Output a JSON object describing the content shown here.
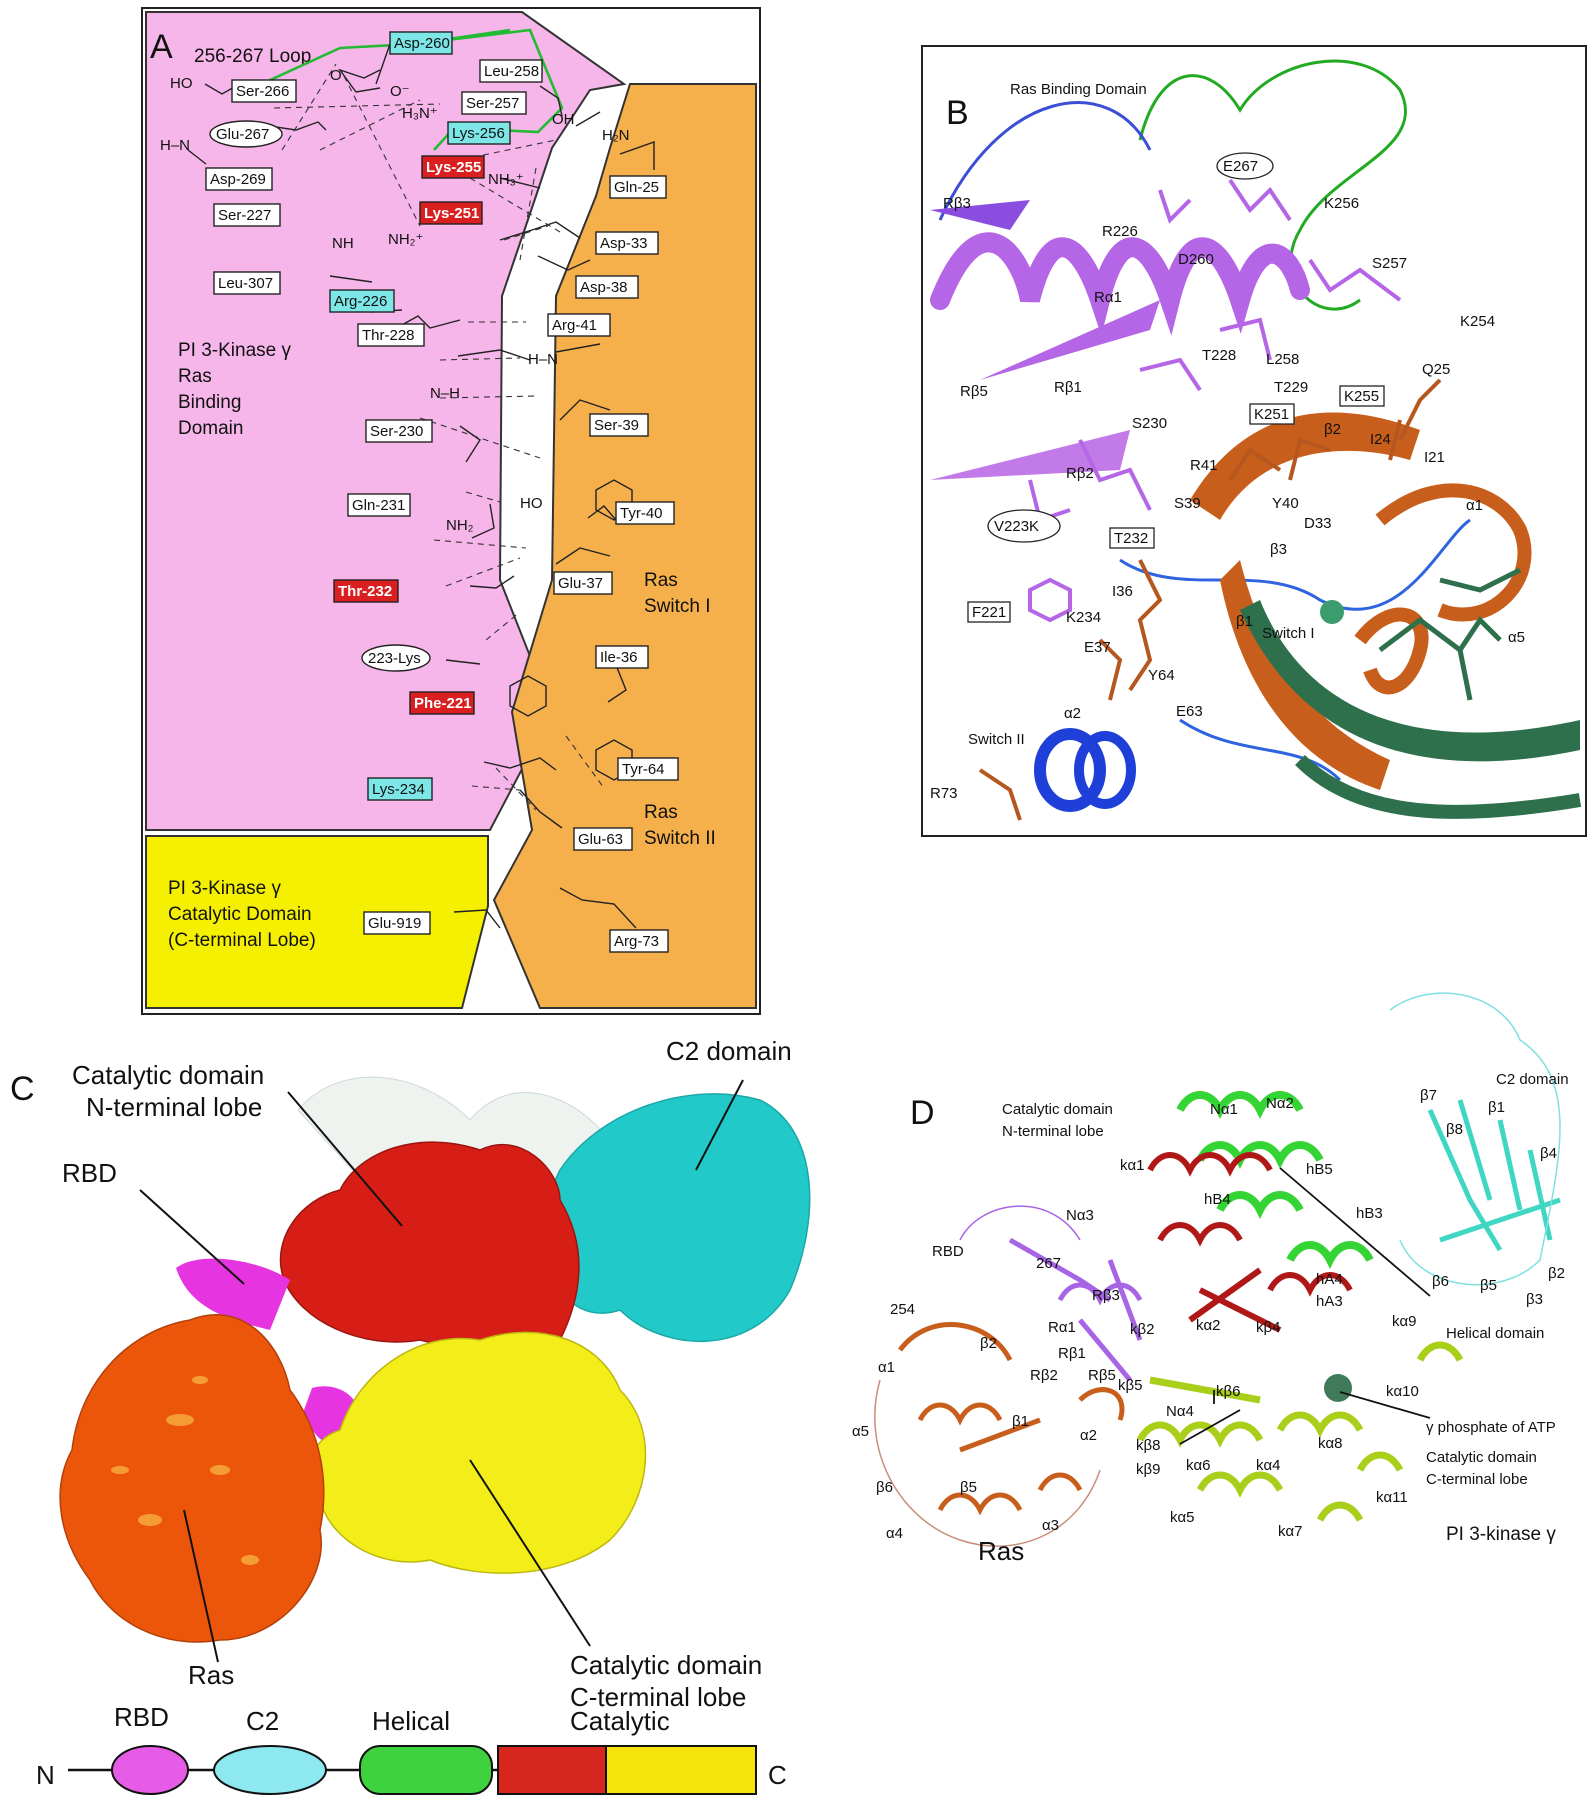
{
  "panelA": {
    "letter": "A",
    "loop_title": "256-267  Loop",
    "rbd_label": [
      "PI 3-Kinase γ",
      "Ras",
      "Binding",
      "Domain"
    ],
    "catalytic_label": [
      "PI 3-Kinase γ",
      "Catalytic Domain",
      "(C-terminal Lobe)"
    ],
    "switch1_label": [
      "Ras",
      "Switch I"
    ],
    "switch2_label": [
      "Ras",
      "Switch II"
    ],
    "residues_white": [
      "Ser-266",
      "Leu-258",
      "Ser-257",
      "Asp-269",
      "Ser-227",
      "Leu-307",
      "Thr-228",
      "Ser-230",
      "Gln-231",
      "Gln-25",
      "Asp-33",
      "Asp-38",
      "Arg-41",
      "Ser-39",
      "Tyr-40",
      "Glu-37",
      "Ile-36",
      "Tyr-64",
      "Glu-63",
      "Arg-73",
      "Glu-919"
    ],
    "residues_cyan": [
      "Asp-260",
      "Lys-256",
      "Arg-226",
      "Lys-234"
    ],
    "residues_red": [
      "Lys-255",
      "Lys-251",
      "Thr-232",
      "Phe-221"
    ],
    "residues_oval": [
      "Glu-267",
      "223-Lys"
    ],
    "atoms": [
      "HO",
      "H–N",
      "O",
      "O⁻",
      "H₃N⁺",
      "NH₃⁺",
      "OH",
      "H₂N",
      "NH",
      "NH₂⁺",
      "H–N",
      "N–H",
      "HO",
      "NH₂"
    ]
  },
  "panelB": {
    "letter": "B",
    "title": "Ras Binding Domain",
    "boxed": [
      "E267",
      "K251",
      "K255",
      "T232",
      "V223K",
      "F221"
    ],
    "labels": [
      "Rβ3",
      "R226",
      "D260",
      "K256",
      "S257",
      "K254",
      "Rα1",
      "T228",
      "L258",
      "T229",
      "Q25",
      "Rβ5",
      "Rβ1",
      "S230",
      "β2",
      "I24",
      "I21",
      "Rβ2",
      "R41",
      "S39",
      "Y40",
      "D33",
      "α1",
      "β3",
      "I36",
      "K234",
      "β1",
      "Switch I",
      "α5",
      "E37",
      "Y64",
      "E63",
      "α2",
      "Switch II",
      "R73"
    ]
  },
  "panelC": {
    "letter": "C",
    "labels": {
      "nlobe": [
        "Catalytic domain",
        "N-terminal lobe"
      ],
      "c2": "C2 domain",
      "rbd": "RBD",
      "ras": "Ras",
      "clobe": [
        "Catalytic domain",
        "C-terminal lobe"
      ]
    }
  },
  "panelD": {
    "letter": "D",
    "labels": {
      "nlobe": [
        "Catalytic domain",
        "N-terminal lobe"
      ],
      "c2": "C2 domain",
      "rbd": "RBD",
      "helical": "Helical domain",
      "atp": "γ phosphate of ATP",
      "clobe": [
        "Catalytic domain",
        "C-terminal lobe"
      ],
      "ras": "Ras",
      "pi3k": "PI 3-kinase γ"
    },
    "sse": [
      "Nα1",
      "Nα2",
      "β7",
      "β1",
      "β8",
      "β4",
      "kα1",
      "hB5",
      "hB4",
      "hB3",
      "Nα3",
      "267",
      "Rβ3",
      "hA4",
      "β6",
      "β5",
      "β2",
      "β3",
      "254",
      "Rα1",
      "kβ2",
      "kα2",
      "hA3",
      "kα9",
      "Rβ1",
      "kβ4",
      "β2",
      "Rβ2",
      "Rβ5",
      "α1",
      "kβ5",
      "kβ6",
      "kα10",
      "Nα4",
      "α5",
      "β1",
      "kβ8",
      "α2",
      "kβ9",
      "kα6",
      "kα4",
      "kα8",
      "β6",
      "β5",
      "kα5",
      "kα11",
      "kα7",
      "α4",
      "α3"
    ]
  },
  "bar": {
    "n": "N",
    "c": "C",
    "domains": [
      "RBD",
      "C2",
      "Helical",
      "Catalytic"
    ],
    "colors": {
      "rbd": "#e65ce6",
      "c2": "#8ee8f0",
      "helical": "#3fd23f",
      "cat1": "#d7261e",
      "cat2": "#f6e20c"
    }
  }
}
